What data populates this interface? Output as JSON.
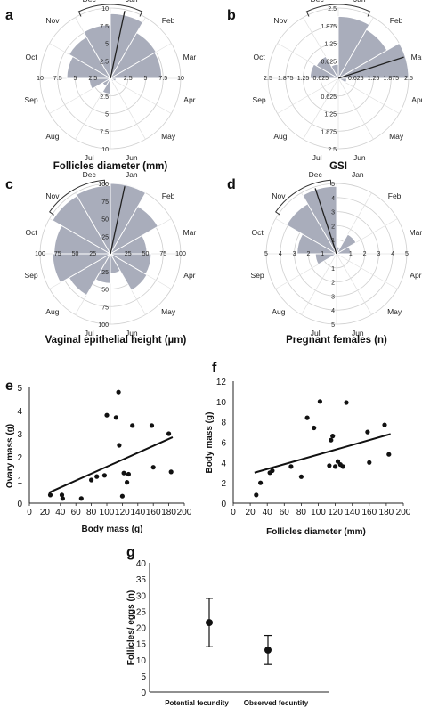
{
  "chart_data": [
    {
      "panel": "a",
      "type": "radar",
      "title": "Follicles diameter (mm)",
      "months": [
        "Jan",
        "Feb",
        "Mar",
        "Apr",
        "May",
        "Jun",
        "Jul",
        "Aug",
        "Sep",
        "Oct",
        "Nov",
        "Dec"
      ],
      "values": [
        9.2,
        7.5,
        7.3,
        0.8,
        0.5,
        0.3,
        2.2,
        1.3,
        3.0,
        6.2,
        6.8,
        7.6
      ],
      "rmax": 10,
      "tick_labels": [
        "10",
        "7.5",
        "5",
        "2.5"
      ],
      "bracket_from": "Dec",
      "bracket_to": "Jan"
    },
    {
      "panel": "b",
      "type": "radar",
      "title": "GSI",
      "months": [
        "Jan",
        "Feb",
        "Mar",
        "Apr",
        "May",
        "Jun",
        "Jul",
        "Aug",
        "Sep",
        "Oct",
        "Nov",
        "Dec"
      ],
      "values": [
        2.2,
        2.0,
        2.5,
        0.3,
        0,
        0,
        0,
        0,
        0,
        1.0,
        0.9,
        0.5
      ],
      "rmax": 2.5,
      "tick_labels": [
        "2.5",
        "1.875",
        "1.25",
        "0.625"
      ],
      "bracket_from": "Dec",
      "bracket_to": "Jan"
    },
    {
      "panel": "c",
      "type": "radar",
      "title": "Vaginal epithelial height  (µm)",
      "months": [
        "Jan",
        "Feb",
        "Mar",
        "Apr",
        "May",
        "Jun",
        "Jul",
        "Aug",
        "Sep",
        "Oct",
        "Nov",
        "Dec"
      ],
      "values": [
        100,
        78,
        52,
        58,
        60,
        28,
        42,
        68,
        82,
        80,
        95,
        97
      ],
      "rmax": 100,
      "tick_labels": [
        "100",
        "75",
        "50",
        "25"
      ],
      "bracket_from": "Nov",
      "bracket_to": "Dec"
    },
    {
      "panel": "d",
      "type": "radar",
      "title": "Pregnant females (n)",
      "months": [
        "Jan",
        "Feb",
        "Mar",
        "Apr",
        "May",
        "Jun",
        "Jul",
        "Aug",
        "Sep",
        "Oct",
        "Nov",
        "Dec"
      ],
      "values": [
        0.5,
        1.6,
        1.0,
        0,
        0,
        0,
        0,
        0,
        1.5,
        2.8,
        4.1,
        4.8
      ],
      "rmax": 5,
      "tick_labels": [
        "5",
        "4",
        "3",
        "2",
        "1"
      ],
      "bracket_from": "Nov",
      "bracket_to": "Dec"
    },
    {
      "panel": "e",
      "type": "scatter",
      "xlabel": "Body mass (g)",
      "ylabel": "Ovary mass (g)",
      "xlim": [
        0,
        200
      ],
      "ylim": [
        0,
        5
      ],
      "xticks": [
        0,
        20,
        40,
        60,
        80,
        100,
        120,
        140,
        160,
        180,
        200
      ],
      "yticks": [
        0,
        1,
        2,
        3,
        4,
        5
      ],
      "points": [
        [
          27,
          0.35
        ],
        [
          42,
          0.35
        ],
        [
          43,
          0.2
        ],
        [
          67,
          0.2
        ],
        [
          80,
          1.0
        ],
        [
          87,
          1.15
        ],
        [
          97,
          1.2
        ],
        [
          100,
          3.8
        ],
        [
          112,
          3.7
        ],
        [
          115,
          4.8
        ],
        [
          116,
          2.5
        ],
        [
          120,
          0.3
        ],
        [
          122,
          1.3
        ],
        [
          126,
          0.9
        ],
        [
          128,
          1.25
        ],
        [
          133,
          3.35
        ],
        [
          158,
          3.35
        ],
        [
          160,
          1.55
        ],
        [
          180,
          3.0
        ],
        [
          183,
          1.35
        ]
      ],
      "trend": [
        [
          25,
          0.45
        ],
        [
          185,
          2.85
        ]
      ]
    },
    {
      "panel": "f",
      "type": "scatter",
      "xlabel": "Follicles diameter (mm)",
      "ylabel": "Body mass (g)",
      "xlim": [
        0,
        200
      ],
      "ylim": [
        0,
        12
      ],
      "xticks": [
        0,
        20,
        40,
        60,
        80,
        100,
        120,
        140,
        160,
        180,
        200
      ],
      "yticks": [
        0,
        2,
        4,
        6,
        8,
        10,
        12
      ],
      "points": [
        [
          27,
          0.8
        ],
        [
          32,
          2.0
        ],
        [
          43,
          3.0
        ],
        [
          46,
          3.2
        ],
        [
          68,
          3.6
        ],
        [
          80,
          2.6
        ],
        [
          87,
          8.4
        ],
        [
          95,
          7.4
        ],
        [
          102,
          10.0
        ],
        [
          113,
          3.7
        ],
        [
          115,
          6.2
        ],
        [
          117,
          6.6
        ],
        [
          120,
          3.6
        ],
        [
          123,
          4.1
        ],
        [
          126,
          3.8
        ],
        [
          129,
          3.6
        ],
        [
          133,
          9.9
        ],
        [
          158,
          7.0
        ],
        [
          160,
          4.0
        ],
        [
          178,
          7.7
        ],
        [
          183,
          4.8
        ]
      ],
      "trend": [
        [
          25,
          3.0
        ],
        [
          185,
          6.8
        ]
      ]
    },
    {
      "panel": "g",
      "type": "errorbar",
      "ylabel": "Follicles/ eggs (n)",
      "ylim": [
        0,
        40
      ],
      "yticks": [
        0,
        5,
        10,
        15,
        20,
        25,
        30,
        35,
        40
      ],
      "categories": [
        "Potential fecundity",
        "Observed fecuntity"
      ],
      "means": [
        21.5,
        13.0
      ],
      "err_low": [
        14.0,
        8.5
      ],
      "err_high": [
        29.0,
        17.5
      ]
    }
  ]
}
